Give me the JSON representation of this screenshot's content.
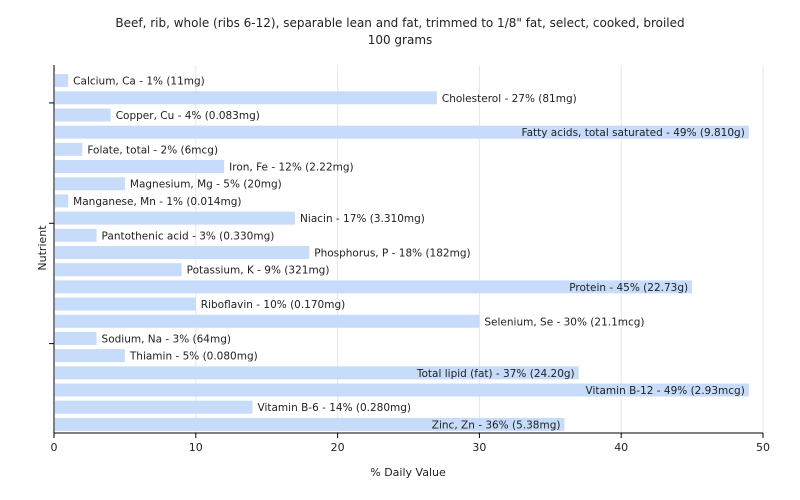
{
  "chart_data": {
    "type": "bar",
    "orientation": "horizontal",
    "title": "Beef, rib, whole (ribs 6-12), separable lean and fat, trimmed to 1/8\" fat, select, cooked, broiled",
    "subtitle": "100 grams",
    "xlabel": "% Daily Value",
    "ylabel": "Nutrient",
    "xlim": [
      0,
      50
    ],
    "xticks": [
      "0",
      "10",
      "20",
      "30",
      "40",
      "50"
    ],
    "grid": "vertical",
    "bar_color": "#c6dcfa",
    "categories": [
      "Calcium, Ca - 1% (11mg)",
      "Cholesterol - 27% (81mg)",
      "Copper, Cu - 4% (0.083mg)",
      "Fatty acids, total saturated - 49% (9.810g)",
      "Folate, total - 2% (6mcg)",
      "Iron, Fe - 12% (2.22mg)",
      "Magnesium, Mg - 5% (20mg)",
      "Manganese, Mn - 1% (0.014mg)",
      "Niacin - 17% (3.310mg)",
      "Pantothenic acid - 3% (0.330mg)",
      "Phosphorus, P - 18% (182mg)",
      "Potassium, K - 9% (321mg)",
      "Protein - 45% (22.73g)",
      "Riboflavin - 10% (0.170mg)",
      "Selenium, Se - 30% (21.1mcg)",
      "Sodium, Na - 3% (64mg)",
      "Thiamin - 5% (0.080mg)",
      "Total lipid (fat) - 37% (24.20g)",
      "Vitamin B-12 - 49% (2.93mcg)",
      "Vitamin B-6 - 14% (0.280mg)",
      "Zinc, Zn - 36% (5.38mg)"
    ],
    "values": [
      1,
      27,
      4,
      49,
      2,
      12,
      5,
      1,
      17,
      3,
      18,
      9,
      45,
      10,
      30,
      3,
      5,
      37,
      49,
      14,
      36
    ]
  }
}
